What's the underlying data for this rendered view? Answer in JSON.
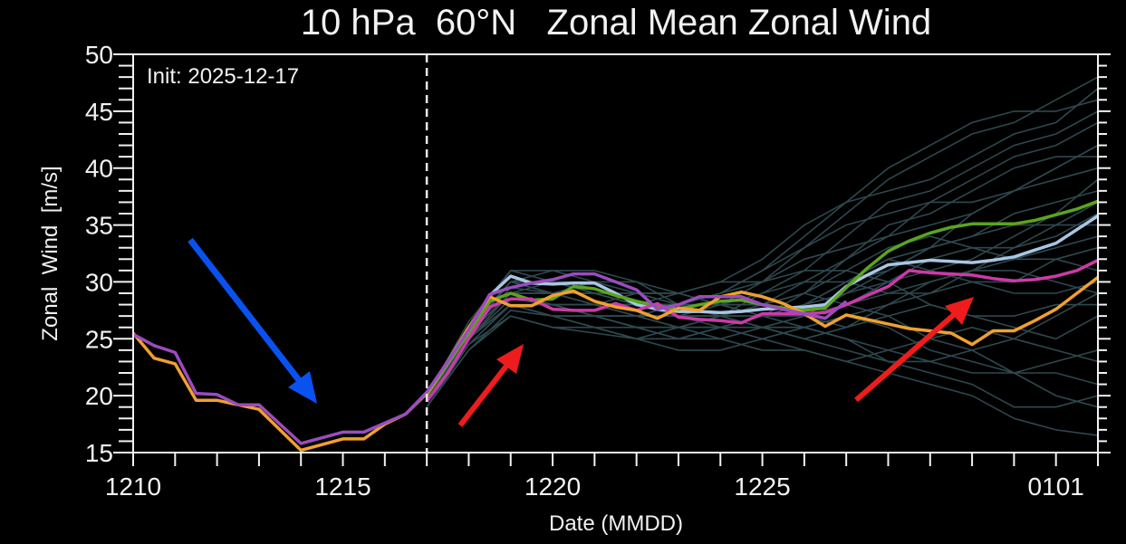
{
  "chart_data": {
    "type": "line",
    "title": "10 hPa  60°N   Zonal Mean Zonal Wind",
    "xlabel": "Date (MMDD)",
    "ylabel": "Zonal  Wind  [m/s]",
    "annotation": "Init: 2025-12-17",
    "init_date": "1217 00",
    "xlim": [
      "1210 00",
      "0102 00"
    ],
    "ylim": [
      15,
      50
    ],
    "x_ticks": [
      "1210",
      "1215",
      "1220",
      "1225",
      "0101"
    ],
    "y_ticks": [
      15,
      20,
      25,
      30,
      35,
      40,
      45,
      50
    ],
    "grid": false,
    "legend": "none",
    "colors": {
      "ensemble": "#2e484e",
      "orange": "#f0a030",
      "purple": "#9a4cbf",
      "magenta": "#cc3aa8",
      "green": "#5aa51e",
      "lightblue": "#a9c6e2",
      "init_line": "#e8e8e8",
      "arrow_blue": "#0a52f0",
      "arrow_red": "#ee1c1c"
    },
    "analysis_x": [
      "1210 00",
      "1210 12",
      "1211 00",
      "1211 12",
      "1212 00",
      "1212 12",
      "1213 00",
      "1213 12",
      "1214 00",
      "1214 12",
      "1215 00",
      "1215 12",
      "1216 00",
      "1216 12",
      "1217 00"
    ],
    "analysis": [
      {
        "color": "orange",
        "values": [
          25.5,
          23.3,
          22.8,
          19.6,
          19.6,
          19.2,
          18.8,
          17.0,
          15.2,
          15.7,
          16.2,
          16.2,
          17.5,
          18.4,
          20.2
        ]
      },
      {
        "color": "purple",
        "values": [
          25.4,
          24.4,
          23.8,
          20.2,
          20.1,
          19.2,
          19.2,
          17.5,
          15.8,
          16.3,
          16.8,
          16.8,
          17.6,
          18.4,
          20.3
        ]
      }
    ],
    "forecast_x": [
      "1217 00",
      "1217 12",
      "1218 00",
      "1218 12",
      "1219 00",
      "1219 12",
      "1220 00",
      "1220 12",
      "1221 00",
      "1221 12",
      "1222 00",
      "1222 12",
      "1223 00",
      "1223 12",
      "1224 00",
      "1224 12",
      "1225 00",
      "1225 12",
      "1226 00",
      "1226 12",
      "1227 00",
      "1227 12",
      "1228 00",
      "1228 12",
      "1229 00",
      "1229 12",
      "1230 00",
      "1230 12",
      "1231 00",
      "1231 12",
      "0101 00",
      "0101 12",
      "0102 00"
    ],
    "highlighted": [
      {
        "color": "lightblue",
        "values": [
          20,
          22.8,
          25.5,
          28.8,
          30.5,
          29.9,
          29.8,
          29.9,
          29.9,
          29.0,
          28.0,
          27.6,
          27.4,
          27.4,
          27.3,
          27.4,
          27.6,
          27.7,
          27.8,
          28.0,
          29.6,
          30.6,
          31.5,
          31.7,
          31.9,
          31.8,
          31.7,
          31.9,
          32.2,
          32.8,
          33.4,
          34.6,
          35.8
        ]
      },
      {
        "color": "green",
        "values": [
          20,
          22.8,
          25.5,
          28.3,
          29.0,
          28.4,
          28.5,
          29.6,
          29.4,
          28.8,
          28.3,
          27.9,
          27.6,
          28.0,
          28.3,
          28.4,
          28.0,
          27.7,
          27.5,
          27.7,
          29.5,
          31.2,
          32.7,
          33.6,
          34.3,
          34.8,
          35.1,
          35.1,
          35.1,
          35.4,
          35.9,
          36.4,
          37.1
        ]
      },
      {
        "color": "magenta",
        "values": [
          19.5,
          22.0,
          25.0,
          27.8,
          28.5,
          28.5,
          27.6,
          27.5,
          27.5,
          28.1,
          27.5,
          28.1,
          26.9,
          26.7,
          26.6,
          26.4,
          27.2,
          27.2,
          27.2,
          27.3,
          28.0,
          28.8,
          29.6,
          31.0,
          30.8,
          30.7,
          30.6,
          30.3,
          30.1,
          30.2,
          30.5,
          31.0,
          31.9
        ]
      },
      {
        "color": "orange",
        "values": [
          20.2,
          23.0,
          26.0,
          28.7,
          27.9,
          27.9,
          28.8,
          29.2,
          28.3,
          27.8,
          27.5,
          26.8,
          27.7,
          27.5,
          28.7,
          29.1,
          28.7,
          28.1,
          27.2,
          26.1,
          27.1,
          26.7,
          26.3,
          25.9,
          25.7,
          25.5,
          24.5,
          25.7,
          25.7,
          26.6,
          27.6,
          29.0,
          30.4
        ]
      },
      {
        "color": "purple",
        "values": [
          20.3,
          23.0,
          25.8,
          28.9,
          29.5,
          29.9,
          30.2,
          30.7,
          30.7,
          30.0,
          29.3,
          27.6,
          28.0,
          28.7,
          28.7,
          28.7,
          28.0,
          27.6,
          27.2,
          26.8,
          28.3,
          null,
          null,
          null,
          null,
          null,
          null,
          null,
          null,
          null,
          null,
          null,
          null
        ]
      }
    ],
    "ensemble_x": [
      "1217",
      "1218",
      "1219",
      "1220",
      "1221",
      "1222",
      "1223",
      "1224",
      "1225",
      "1226",
      "1227",
      "1228",
      "1229",
      "1230",
      "1231",
      "0101",
      "0102"
    ],
    "ensemble": [
      [
        20,
        26,
        31,
        30,
        29,
        28,
        28,
        29,
        30,
        33,
        36,
        39,
        41,
        43,
        44,
        46,
        48
      ],
      [
        19.5,
        25,
        28,
        27,
        26,
        26,
        25,
        26,
        27,
        28,
        30,
        31,
        33,
        36,
        38,
        40,
        42
      ],
      [
        20,
        25.5,
        29,
        29,
        28,
        27,
        27,
        27,
        28,
        29,
        28,
        27,
        25,
        24,
        22,
        20,
        19
      ],
      [
        19,
        24.5,
        27,
        26,
        25.5,
        25,
        26,
        26,
        25,
        24,
        23,
        22,
        21,
        20,
        18,
        17,
        16.5
      ],
      [
        20,
        26,
        30,
        30,
        29,
        28,
        27,
        28,
        29,
        31,
        34,
        37,
        38,
        40,
        42,
        43,
        45
      ],
      [
        20,
        25.5,
        29,
        28,
        28,
        29,
        29,
        28,
        28,
        27,
        28,
        30,
        32,
        33,
        33,
        35,
        37
      ],
      [
        19.5,
        25,
        28,
        28,
        27,
        26,
        26,
        27,
        29,
        30,
        30,
        29,
        29,
        31,
        33,
        34,
        36
      ],
      [
        20,
        26,
        30,
        31,
        31,
        30,
        28,
        27,
        26,
        26,
        27,
        28,
        29,
        30,
        30,
        32,
        33
      ],
      [
        19,
        24,
        27,
        26,
        26,
        25,
        24,
        24,
        25,
        26,
        27,
        26,
        24,
        23,
        22,
        22,
        21
      ],
      [
        20,
        25,
        29,
        29,
        30,
        30,
        29,
        28,
        28,
        30,
        32,
        35,
        36,
        38,
        40,
        41,
        41
      ],
      [
        19.5,
        25,
        28.5,
        28,
        27,
        27,
        28,
        28,
        27,
        26,
        25,
        24,
        23,
        22,
        22,
        23,
        24
      ],
      [
        20,
        26.5,
        31,
        30,
        29,
        29,
        28,
        29,
        31,
        34,
        37,
        40,
        42,
        44,
        45,
        45,
        46
      ],
      [
        20,
        25.5,
        29,
        29,
        28,
        27,
        27,
        28,
        28,
        27,
        26,
        27,
        28,
        27,
        26,
        25,
        27
      ],
      [
        19,
        24.5,
        28,
        27,
        27,
        26,
        26,
        27,
        27,
        28,
        29,
        31,
        33,
        34,
        35,
        35,
        35
      ],
      [
        20,
        26,
        30,
        29,
        29,
        28,
        28,
        28,
        30,
        32,
        33,
        34,
        35,
        36,
        38,
        40,
        42
      ],
      [
        19.5,
        25,
        28,
        27,
        27,
        27,
        26,
        26,
        26,
        25,
        26,
        28,
        30,
        31,
        32,
        32,
        31
      ],
      [
        20,
        25.5,
        30,
        30,
        29,
        29,
        29,
        28,
        27,
        28,
        30,
        32,
        31,
        30,
        29,
        29,
        30
      ],
      [
        19.5,
        25,
        29,
        28,
        27,
        26,
        26,
        25,
        24,
        24,
        23,
        24,
        25,
        26,
        25,
        24,
        23
      ],
      [
        20,
        26,
        31,
        31,
        30,
        29,
        28,
        29,
        31,
        33,
        35,
        36,
        37,
        37,
        38,
        39,
        40
      ],
      [
        20,
        25.5,
        29,
        28,
        28,
        28,
        27,
        27,
        28,
        29,
        31,
        33,
        34,
        33,
        32,
        33,
        34
      ],
      [
        19,
        24,
        27.5,
        27,
        26,
        25,
        25,
        26,
        27,
        28,
        30,
        32,
        33,
        34,
        36,
        37,
        38
      ],
      [
        20,
        25,
        29,
        30,
        29,
        28,
        28,
        27,
        27,
        27,
        28,
        29,
        30,
        31,
        31,
        30,
        29
      ],
      [
        19.5,
        25,
        28,
        27,
        27,
        27,
        27,
        26,
        26,
        26,
        25,
        23,
        22,
        21,
        19,
        19,
        20
      ],
      [
        20,
        26,
        30,
        29,
        29,
        28,
        29,
        30,
        32,
        35,
        37,
        38,
        39,
        41,
        43,
        44,
        47
      ],
      [
        20,
        25,
        28.5,
        28,
        28,
        27,
        26,
        26,
        27,
        29,
        32,
        34,
        37,
        39,
        41,
        42,
        44
      ],
      [
        19.5,
        25.5,
        29.5,
        29,
        28,
        28,
        28,
        27,
        26,
        25,
        24,
        23,
        23,
        24,
        25,
        27,
        29
      ],
      [
        20,
        26,
        30,
        30,
        30,
        29,
        29,
        30,
        30,
        31,
        31,
        30,
        28,
        27,
        27,
        28,
        28
      ],
      [
        19,
        24.5,
        28,
        28,
        27,
        26,
        25,
        25,
        26,
        27,
        29,
        30,
        31,
        32,
        34,
        36,
        39
      ]
    ]
  }
}
